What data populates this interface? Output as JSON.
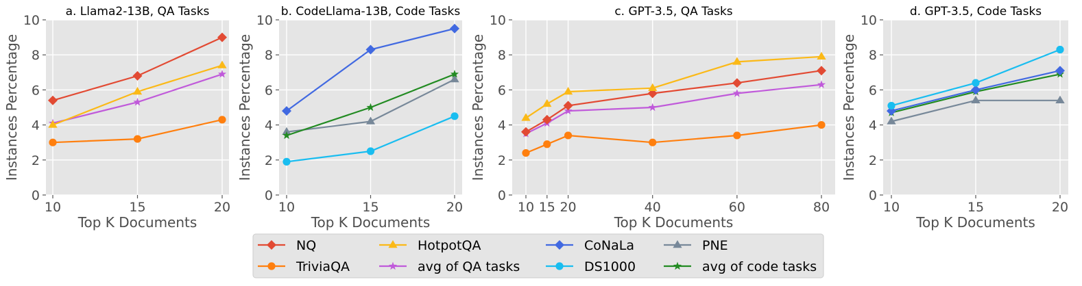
{
  "series_styles": {
    "NQ": {
      "color": "#e24a33",
      "marker": "diamond"
    },
    "TriviaQA": {
      "color": "#ff7f0e",
      "marker": "circle"
    },
    "HotpotQA": {
      "color": "#fbb917",
      "marker": "triangle"
    },
    "avg of QA tasks": {
      "color": "#c05ada",
      "marker": "star"
    },
    "CoNaLa": {
      "color": "#4169e1",
      "marker": "diamond"
    },
    "DS1000": {
      "color": "#19bdf0",
      "marker": "circle"
    },
    "PNE": {
      "color": "#778899",
      "marker": "triangle"
    },
    "avg of code tasks": {
      "color": "#228b22",
      "marker": "star"
    }
  },
  "legend": {
    "entries": [
      "NQ",
      "TriviaQA",
      "HotpotQA",
      "avg of QA tasks",
      "CoNaLa",
      "DS1000",
      "PNE",
      "avg of code tasks"
    ],
    "placement": "bottom-center"
  },
  "chart_data": [
    {
      "type": "line",
      "title": "a. Llama2-13B, QA Tasks",
      "xlabel": "Top K Documents",
      "ylabel": "Instances Percentage",
      "x": [
        10,
        15,
        20
      ],
      "x_ticks": [
        "10",
        "15",
        "20"
      ],
      "ylim": [
        0,
        10
      ],
      "y_ticks": [
        "0",
        "2",
        "4",
        "6",
        "8",
        "10"
      ],
      "grid": true,
      "series": [
        {
          "name": "TriviaQA",
          "values": [
            3.0,
            3.2,
            4.3
          ]
        },
        {
          "name": "avg of QA tasks",
          "values": [
            4.1,
            5.3,
            6.9
          ]
        },
        {
          "name": "HotpotQA",
          "values": [
            4.0,
            5.9,
            7.4
          ]
        },
        {
          "name": "NQ",
          "values": [
            5.4,
            6.8,
            9.0
          ]
        }
      ]
    },
    {
      "type": "line",
      "title": "b. CodeLlama-13B, Code Tasks",
      "xlabel": "Top K Documents",
      "ylabel": "Instances Percentage",
      "x": [
        10,
        15,
        20
      ],
      "x_ticks": [
        "10",
        "15",
        "20"
      ],
      "ylim": [
        0,
        10
      ],
      "y_ticks": [
        "0",
        "2",
        "4",
        "6",
        "8",
        "10"
      ],
      "grid": true,
      "series": [
        {
          "name": "DS1000",
          "values": [
            1.9,
            2.5,
            4.5
          ]
        },
        {
          "name": "PNE",
          "values": [
            3.6,
            4.2,
            6.6
          ]
        },
        {
          "name": "avg of code tasks",
          "values": [
            3.4,
            5.0,
            6.9
          ]
        },
        {
          "name": "CoNaLa",
          "values": [
            4.8,
            8.3,
            9.5
          ]
        }
      ]
    },
    {
      "type": "line",
      "title": "c. GPT-3.5, QA Tasks",
      "xlabel": "Top K Documents",
      "ylabel": "Instances Percentage",
      "x": [
        10,
        15,
        20,
        40,
        60,
        80
      ],
      "x_ticks": [
        "10",
        "15",
        "20",
        "40",
        "60",
        "80"
      ],
      "ylim": [
        0,
        10
      ],
      "y_ticks": [
        "0",
        "2",
        "4",
        "6",
        "8",
        "10"
      ],
      "grid": true,
      "series": [
        {
          "name": "TriviaQA",
          "values": [
            2.4,
            2.9,
            3.4,
            3.0,
            3.4,
            4.0
          ]
        },
        {
          "name": "avg of QA tasks",
          "values": [
            3.5,
            4.1,
            4.8,
            5.0,
            5.8,
            6.3
          ]
        },
        {
          "name": "NQ",
          "values": [
            3.6,
            4.3,
            5.1,
            5.8,
            6.4,
            7.1
          ]
        },
        {
          "name": "HotpotQA",
          "values": [
            4.4,
            5.2,
            5.9,
            6.1,
            7.6,
            7.9
          ]
        }
      ]
    },
    {
      "type": "line",
      "title": "d. GPT-3.5, Code Tasks",
      "xlabel": "Top K Documents",
      "ylabel": "Instances Percentage",
      "x": [
        10,
        15,
        20
      ],
      "x_ticks": [
        "10",
        "15",
        "20"
      ],
      "ylim": [
        0,
        10
      ],
      "y_ticks": [
        "0",
        "2",
        "4",
        "6",
        "8",
        "10"
      ],
      "grid": true,
      "series": [
        {
          "name": "PNE",
          "values": [
            4.2,
            5.4,
            5.4
          ]
        },
        {
          "name": "avg of code tasks",
          "values": [
            4.7,
            5.9,
            6.9
          ]
        },
        {
          "name": "CoNaLa",
          "values": [
            4.8,
            6.0,
            7.1
          ]
        },
        {
          "name": "DS1000",
          "values": [
            5.1,
            6.4,
            8.3
          ]
        }
      ]
    }
  ]
}
